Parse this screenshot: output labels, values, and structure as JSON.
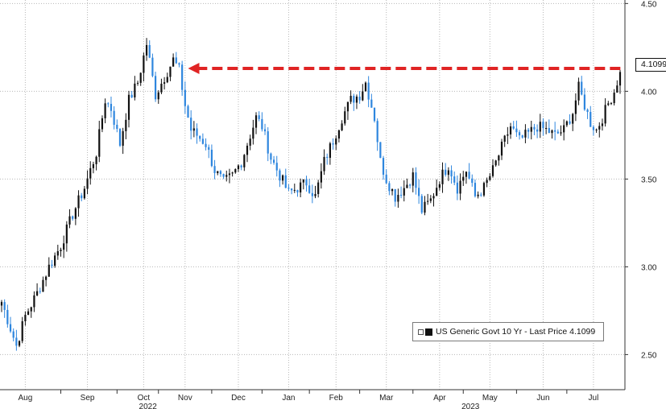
{
  "chart_data": {
    "type": "candlestick",
    "title": "",
    "legend": {
      "label": "US Generic Govt 10 Yr - Last Price 4.1099",
      "placement": "bottom-right"
    },
    "last_price_label": "4.1099",
    "y_ticks": [
      {
        "value": 4.5,
        "label": "4.50"
      },
      {
        "value": 4.0,
        "label": "4.00"
      },
      {
        "value": 3.5,
        "label": "3.50"
      },
      {
        "value": 3.0,
        "label": "3.00"
      },
      {
        "value": 2.5,
        "label": "2.50"
      }
    ],
    "ylim": [
      2.3,
      4.52
    ],
    "x_ticks": [
      {
        "label": "Aug",
        "index": 8
      },
      {
        "label": "Sep",
        "index": 29
      },
      {
        "label": "Oct",
        "index": 48
      },
      {
        "label": "Nov",
        "index": 62
      },
      {
        "label": "Dec",
        "index": 80
      },
      {
        "label": "Jan",
        "index": 97
      },
      {
        "label": "Feb",
        "index": 113
      },
      {
        "label": "Mar",
        "index": 130
      },
      {
        "label": "Apr",
        "index": 148
      },
      {
        "label": "May",
        "index": 165
      },
      {
        "label": "Jun",
        "index": 183
      },
      {
        "label": "Jul",
        "index": 200
      }
    ],
    "year_labels": [
      {
        "label": "2022",
        "index": 44
      },
      {
        "label": "2023",
        "index": 153
      }
    ],
    "grid": true,
    "annotation": {
      "type": "dashed-arrow",
      "level": 4.13,
      "from_index": 208,
      "to_index": 63,
      "color": "#e02424"
    },
    "anchors": [
      [
        0,
        2.8
      ],
      [
        3,
        2.65
      ],
      [
        5,
        2.55
      ],
      [
        8,
        2.72
      ],
      [
        12,
        2.85
      ],
      [
        16,
        3.0
      ],
      [
        20,
        3.12
      ],
      [
        24,
        3.3
      ],
      [
        28,
        3.45
      ],
      [
        32,
        3.65
      ],
      [
        35,
        3.95
      ],
      [
        37,
        3.9
      ],
      [
        40,
        3.7
      ],
      [
        43,
        3.95
      ],
      [
        46,
        4.05
      ],
      [
        49,
        4.27
      ],
      [
        52,
        3.98
      ],
      [
        55,
        4.08
      ],
      [
        58,
        4.18
      ],
      [
        60,
        4.12
      ],
      [
        62,
        3.92
      ],
      [
        64,
        3.78
      ],
      [
        66,
        3.75
      ],
      [
        69,
        3.7
      ],
      [
        72,
        3.55
      ],
      [
        75,
        3.48
      ],
      [
        78,
        3.52
      ],
      [
        81,
        3.6
      ],
      [
        84,
        3.75
      ],
      [
        86,
        3.85
      ],
      [
        88,
        3.8
      ],
      [
        91,
        3.62
      ],
      [
        94,
        3.52
      ],
      [
        97,
        3.42
      ],
      [
        100,
        3.45
      ],
      [
        103,
        3.48
      ],
      [
        106,
        3.4
      ],
      [
        109,
        3.6
      ],
      [
        112,
        3.72
      ],
      [
        115,
        3.85
      ],
      [
        118,
        3.95
      ],
      [
        121,
        3.98
      ],
      [
        123,
        4.05
      ],
      [
        126,
        3.85
      ],
      [
        128,
        3.6
      ],
      [
        130,
        3.5
      ],
      [
        133,
        3.4
      ],
      [
        136,
        3.45
      ],
      [
        139,
        3.52
      ],
      [
        142,
        3.32
      ],
      [
        145,
        3.38
      ],
      [
        148,
        3.5
      ],
      [
        151,
        3.58
      ],
      [
        154,
        3.45
      ],
      [
        157,
        3.55
      ],
      [
        160,
        3.4
      ],
      [
        163,
        3.45
      ],
      [
        166,
        3.55
      ],
      [
        169,
        3.68
      ],
      [
        172,
        3.8
      ],
      [
        175,
        3.72
      ],
      [
        178,
        3.76
      ],
      [
        181,
        3.8
      ],
      [
        184,
        3.78
      ],
      [
        187,
        3.75
      ],
      [
        190,
        3.78
      ],
      [
        193,
        3.88
      ],
      [
        195,
        4.02
      ],
      [
        197,
        3.92
      ],
      [
        199,
        3.82
      ],
      [
        201,
        3.78
      ],
      [
        203,
        3.85
      ],
      [
        205,
        3.93
      ],
      [
        207,
        4.0
      ],
      [
        209,
        4.11
      ]
    ],
    "series_count": 210,
    "colors": {
      "up": "#111111",
      "down": "#2e86de",
      "grid": "#b8b8b8",
      "axis": "#333333"
    }
  }
}
